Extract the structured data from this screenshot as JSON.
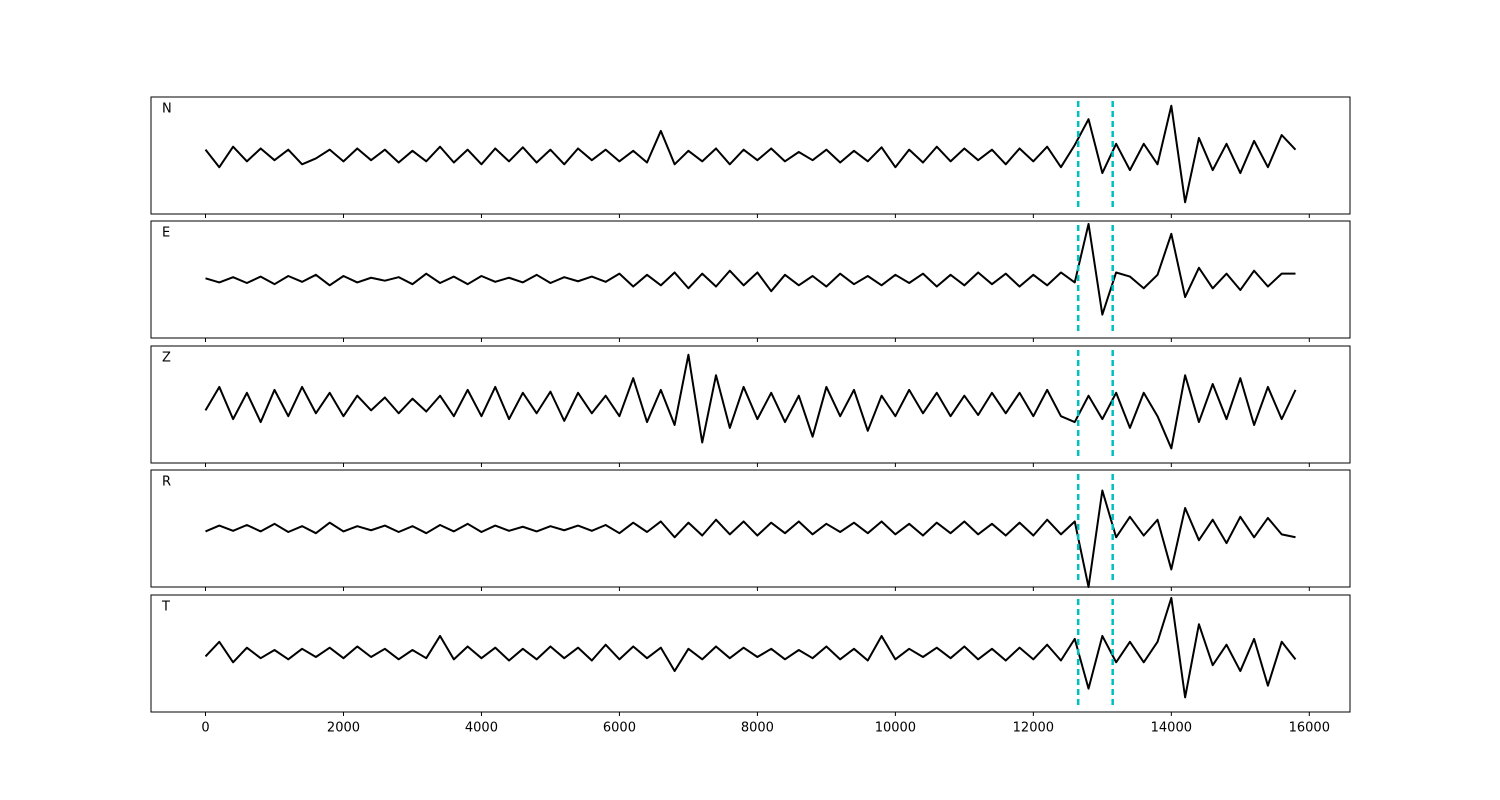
{
  "chart_data": [
    {
      "type": "line",
      "title": "N",
      "color": "#000000",
      "vline_color": "#00bfbf",
      "vlines": [
        12650,
        13150
      ],
      "xlim": [
        -790,
        16590
      ],
      "ylim": [
        -1,
        1
      ],
      "xticks": [
        0,
        2000,
        4000,
        6000,
        8000,
        10000,
        12000,
        14000,
        16000
      ],
      "x": [
        0,
        200,
        400,
        600,
        800,
        1000,
        1200,
        1400,
        1600,
        1800,
        2000,
        2200,
        2400,
        2600,
        2800,
        3000,
        3200,
        3400,
        3600,
        3800,
        4000,
        4200,
        4400,
        4600,
        4800,
        5000,
        5200,
        5400,
        5600,
        5800,
        6000,
        6200,
        6400,
        6600,
        6800,
        7000,
        7200,
        7400,
        7600,
        7800,
        8000,
        8200,
        8400,
        8600,
        8800,
        9000,
        9200,
        9400,
        9600,
        9800,
        10000,
        10200,
        10400,
        10600,
        10800,
        11000,
        11200,
        11400,
        11600,
        11800,
        12000,
        12200,
        12400,
        12600,
        12800,
        13000,
        13200,
        13400,
        13600,
        13800,
        14000,
        14200,
        14400,
        14600,
        14800,
        15000,
        15200,
        15400,
        15600,
        15800
      ],
      "values": [
        0.1,
        -0.2,
        0.15,
        -0.1,
        0.12,
        -0.08,
        0.1,
        -0.15,
        -0.05,
        0.1,
        -0.1,
        0.12,
        -0.08,
        0.1,
        -0.12,
        0.08,
        -0.1,
        0.15,
        -0.12,
        0.1,
        -0.15,
        0.12,
        -0.1,
        0.14,
        -0.12,
        0.1,
        -0.15,
        0.12,
        -0.08,
        0.1,
        -0.1,
        0.08,
        -0.12,
        0.42,
        -0.15,
        0.08,
        -0.1,
        0.12,
        -0.15,
        0.1,
        -0.08,
        0.12,
        -0.1,
        0.06,
        -0.08,
        0.1,
        -0.12,
        0.08,
        -0.1,
        0.14,
        -0.2,
        0.1,
        -0.12,
        0.15,
        -0.1,
        0.12,
        -0.08,
        0.1,
        -0.15,
        0.12,
        -0.1,
        0.15,
        -0.2,
        0.18,
        0.62,
        -0.3,
        0.2,
        -0.25,
        0.2,
        -0.15,
        0.85,
        -0.8,
        0.3,
        -0.25,
        0.2,
        -0.3,
        0.25,
        -0.2,
        0.35,
        0.1
      ]
    },
    {
      "type": "line",
      "title": "E",
      "color": "#000000",
      "vline_color": "#00bfbf",
      "vlines": [
        12650,
        13150
      ],
      "xlim": [
        -790,
        16590
      ],
      "ylim": [
        -1,
        1
      ],
      "xticks": [
        0,
        2000,
        4000,
        6000,
        8000,
        10000,
        12000,
        14000,
        16000
      ],
      "x": [
        0,
        200,
        400,
        600,
        800,
        1000,
        1200,
        1400,
        1600,
        1800,
        2000,
        2200,
        2400,
        2600,
        2800,
        3000,
        3200,
        3400,
        3600,
        3800,
        4000,
        4200,
        4400,
        4600,
        4800,
        5000,
        5200,
        5400,
        5600,
        5800,
        6000,
        6200,
        6400,
        6600,
        6800,
        7000,
        7200,
        7400,
        7600,
        7800,
        8000,
        8200,
        8400,
        8600,
        8800,
        9000,
        9200,
        9400,
        9600,
        9800,
        10000,
        10200,
        10400,
        10600,
        10800,
        11000,
        11200,
        11400,
        11600,
        11800,
        12000,
        12200,
        12400,
        12600,
        12800,
        13000,
        13200,
        13400,
        13600,
        13800,
        14000,
        14200,
        14400,
        14600,
        14800,
        15000,
        15200,
        15400,
        15600,
        15800
      ],
      "values": [
        0.02,
        -0.05,
        0.04,
        -0.06,
        0.05,
        -0.08,
        0.06,
        -0.04,
        0.08,
        -0.1,
        0.06,
        -0.05,
        0.03,
        -0.02,
        0.04,
        -0.08,
        0.1,
        -0.06,
        0.05,
        -0.08,
        0.06,
        -0.04,
        0.03,
        -0.05,
        0.08,
        -0.06,
        0.04,
        -0.03,
        0.05,
        -0.04,
        0.1,
        -0.12,
        0.08,
        -0.1,
        0.12,
        -0.15,
        0.1,
        -0.12,
        0.15,
        -0.1,
        0.12,
        -0.2,
        0.08,
        -0.1,
        0.06,
        -0.12,
        0.1,
        -0.08,
        0.06,
        -0.1,
        0.08,
        -0.06,
        0.1,
        -0.12,
        0.08,
        -0.1,
        0.12,
        -0.08,
        0.1,
        -0.12,
        0.08,
        -0.1,
        0.12,
        -0.05,
        0.95,
        -0.6,
        0.12,
        0.05,
        -0.15,
        0.08,
        0.78,
        -0.3,
        0.2,
        -0.15,
        0.1,
        -0.18,
        0.15,
        -0.12,
        0.1,
        0.1
      ]
    },
    {
      "type": "line",
      "title": "Z",
      "color": "#000000",
      "vline_color": "#00bfbf",
      "vlines": [
        12650,
        13150
      ],
      "xlim": [
        -790,
        16590
      ],
      "ylim": [
        -1,
        1
      ],
      "xticks": [
        0,
        2000,
        4000,
        6000,
        8000,
        10000,
        12000,
        14000,
        16000
      ],
      "x": [
        0,
        200,
        400,
        600,
        800,
        1000,
        1200,
        1400,
        1600,
        1800,
        2000,
        2200,
        2400,
        2600,
        2800,
        3000,
        3200,
        3400,
        3600,
        3800,
        4000,
        4200,
        4400,
        4600,
        4800,
        5000,
        5200,
        5400,
        5600,
        5800,
        6000,
        6200,
        6400,
        6600,
        6800,
        7000,
        7200,
        7400,
        7600,
        7800,
        8000,
        8200,
        8400,
        8600,
        8800,
        9000,
        9200,
        9400,
        9600,
        9800,
        10000,
        10200,
        10400,
        10600,
        10800,
        11000,
        11200,
        11400,
        11600,
        11800,
        12000,
        12200,
        12400,
        12600,
        12800,
        13000,
        13200,
        13400,
        13600,
        13800,
        14000,
        14200,
        14400,
        14600,
        14800,
        15000,
        15200,
        15400,
        15600,
        15800
      ],
      "values": [
        -0.1,
        0.3,
        -0.25,
        0.2,
        -0.3,
        0.25,
        -0.2,
        0.3,
        -0.15,
        0.2,
        -0.2,
        0.15,
        -0.1,
        0.12,
        -0.15,
        0.1,
        -0.12,
        0.15,
        -0.2,
        0.25,
        -0.2,
        0.3,
        -0.25,
        0.2,
        -0.15,
        0.22,
        -0.28,
        0.2,
        -0.15,
        0.15,
        -0.2,
        0.45,
        -0.3,
        0.25,
        -0.35,
        0.85,
        -0.65,
        0.5,
        -0.4,
        0.3,
        -0.25,
        0.2,
        -0.3,
        0.15,
        -0.55,
        0.3,
        -0.2,
        0.25,
        -0.45,
        0.15,
        -0.2,
        0.25,
        -0.15,
        0.2,
        -0.2,
        0.15,
        -0.18,
        0.2,
        -0.15,
        0.2,
        -0.2,
        0.25,
        -0.2,
        -0.3,
        0.15,
        -0.25,
        0.2,
        -0.4,
        0.2,
        -0.2,
        -0.75,
        0.5,
        -0.3,
        0.35,
        -0.25,
        0.45,
        -0.35,
        0.3,
        -0.25,
        0.25
      ]
    },
    {
      "type": "line",
      "title": "R",
      "color": "#000000",
      "vline_color": "#00bfbf",
      "vlines": [
        12650,
        13150
      ],
      "xlim": [
        -790,
        16590
      ],
      "ylim": [
        -1,
        1
      ],
      "xticks": [
        0,
        2000,
        4000,
        6000,
        8000,
        10000,
        12000,
        14000,
        16000
      ],
      "x": [
        0,
        200,
        400,
        600,
        800,
        1000,
        1200,
        1400,
        1600,
        1800,
        2000,
        2200,
        2400,
        2600,
        2800,
        3000,
        3200,
        3400,
        3600,
        3800,
        4000,
        4200,
        4400,
        4600,
        4800,
        5000,
        5200,
        5400,
        5600,
        5800,
        6000,
        6200,
        6400,
        6600,
        6800,
        7000,
        7200,
        7400,
        7600,
        7800,
        8000,
        8200,
        8400,
        8600,
        8800,
        9000,
        9200,
        9400,
        9600,
        9800,
        10000,
        10200,
        10400,
        10600,
        10800,
        11000,
        11200,
        11400,
        11600,
        11800,
        12000,
        12200,
        12400,
        12600,
        12800,
        13000,
        13200,
        13400,
        13600,
        13800,
        14000,
        14200,
        14400,
        14600,
        14800,
        15000,
        15200,
        15400,
        15600,
        15800
      ],
      "values": [
        -0.05,
        0.05,
        -0.04,
        0.06,
        -0.05,
        0.08,
        -0.06,
        0.04,
        -0.08,
        0.1,
        -0.05,
        0.04,
        -0.03,
        0.05,
        -0.06,
        0.04,
        -0.08,
        0.06,
        -0.05,
        0.08,
        -0.06,
        0.05,
        -0.04,
        0.03,
        -0.05,
        0.04,
        -0.03,
        0.05,
        -0.04,
        0.06,
        -0.08,
        0.1,
        -0.06,
        0.12,
        -0.15,
        0.1,
        -0.12,
        0.15,
        -0.1,
        0.12,
        -0.12,
        0.1,
        -0.08,
        0.12,
        -0.1,
        0.08,
        -0.06,
        0.1,
        -0.08,
        0.12,
        -0.1,
        0.08,
        -0.12,
        0.1,
        -0.08,
        0.12,
        -0.1,
        0.08,
        -0.12,
        0.1,
        -0.12,
        0.15,
        -0.1,
        0.12,
        -1.0,
        0.65,
        -0.15,
        0.2,
        -0.12,
        0.15,
        -0.7,
        0.35,
        -0.2,
        0.15,
        -0.25,
        0.2,
        -0.15,
        0.18,
        -0.1,
        -0.15
      ]
    },
    {
      "type": "line",
      "title": "T",
      "color": "#000000",
      "vline_color": "#00bfbf",
      "vlines": [
        12650,
        13150
      ],
      "xlim": [
        -790,
        16590
      ],
      "ylim": [
        -1,
        1
      ],
      "xticks": [
        0,
        2000,
        4000,
        6000,
        8000,
        10000,
        12000,
        14000,
        16000
      ],
      "x": [
        0,
        200,
        400,
        600,
        800,
        1000,
        1200,
        1400,
        1600,
        1800,
        2000,
        2200,
        2400,
        2600,
        2800,
        3000,
        3200,
        3400,
        3600,
        3800,
        4000,
        4200,
        4400,
        4600,
        4800,
        5000,
        5200,
        5400,
        5600,
        5800,
        6000,
        6200,
        6400,
        6600,
        6800,
        7000,
        7200,
        7400,
        7600,
        7800,
        8000,
        8200,
        8400,
        8600,
        8800,
        9000,
        9200,
        9400,
        9600,
        9800,
        10000,
        10200,
        10400,
        10600,
        10800,
        11000,
        11200,
        11400,
        11600,
        11800,
        12000,
        12200,
        12400,
        12600,
        12800,
        13000,
        13200,
        13400,
        13600,
        13800,
        14000,
        14200,
        14400,
        14600,
        14800,
        15000,
        15200,
        15400,
        15600,
        15800
      ],
      "values": [
        -0.05,
        0.2,
        -0.15,
        0.1,
        -0.08,
        0.06,
        -0.1,
        0.08,
        -0.06,
        0.1,
        -0.08,
        0.12,
        -0.06,
        0.08,
        -0.1,
        0.06,
        -0.08,
        0.3,
        -0.1,
        0.12,
        -0.08,
        0.1,
        -0.12,
        0.08,
        -0.1,
        0.12,
        -0.08,
        0.1,
        -0.12,
        0.15,
        -0.1,
        0.12,
        -0.08,
        0.1,
        -0.3,
        0.08,
        -0.1,
        0.12,
        -0.08,
        0.1,
        -0.06,
        0.08,
        -0.1,
        0.06,
        -0.08,
        0.12,
        -0.1,
        0.08,
        -0.12,
        0.3,
        -0.1,
        0.08,
        -0.06,
        0.1,
        -0.08,
        0.12,
        -0.1,
        0.08,
        -0.12,
        0.1,
        -0.1,
        0.15,
        -0.12,
        0.25,
        -0.6,
        0.3,
        -0.15,
        0.2,
        -0.15,
        0.2,
        0.95,
        -0.75,
        0.5,
        -0.2,
        0.15,
        -0.3,
        0.25,
        -0.55,
        0.2,
        -0.1
      ]
    }
  ]
}
